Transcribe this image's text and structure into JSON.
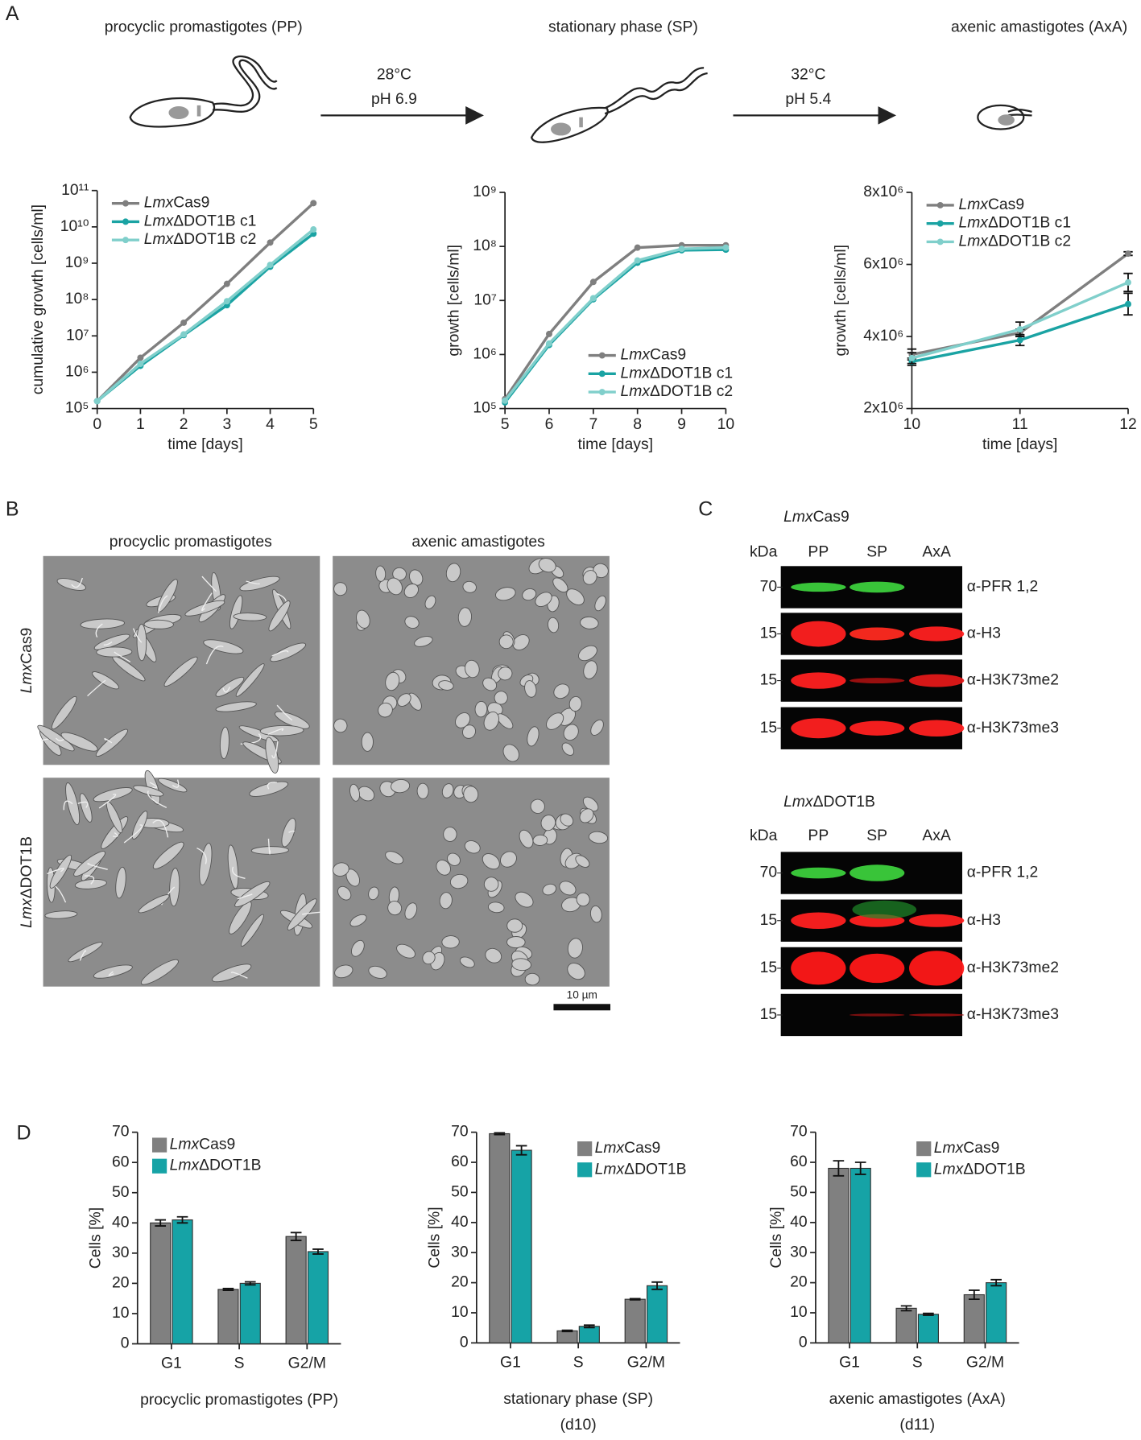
{
  "panel_labels": [
    "A",
    "B",
    "C",
    "D"
  ],
  "life_cycle": {
    "stages": [
      "procyclic promastigotes (PP)",
      "stationary phase (SP)",
      "axenic amastigotes (AxA)"
    ],
    "transitions": [
      [
        "28°C",
        "pH 6.9"
      ],
      [
        "32°C",
        "pH 5.4"
      ]
    ]
  },
  "microscopy": {
    "columns": [
      "procyclic promastigotes",
      "axenic amastigotes"
    ],
    "rows": [
      "LmxCas9",
      "LmxΔDOT1B"
    ],
    "scale_bar": "10 µm"
  },
  "western_blots": {
    "marker_header": "kDa",
    "lanes": [
      "PP",
      "SP",
      "AxA"
    ],
    "blots": [
      {
        "title": "LmxCas9",
        "markers": [
          "70",
          "15",
          "15",
          "15"
        ],
        "antibodies": [
          "α-PFR 1,2",
          "α-H3",
          "α-H3K73me2",
          "α-H3K73me3"
        ]
      },
      {
        "title": "LmxΔDOT1B",
        "markers": [
          "70",
          "15",
          "15",
          "15"
        ],
        "antibodies": [
          "α-PFR 1,2",
          "α-H3",
          "α-H3K73me2",
          "α-H3K73me3"
        ]
      }
    ]
  },
  "chart_data": [
    {
      "type": "line",
      "log_y": true,
      "xlabel": "time [days]",
      "ylabel": "cumulative growth [cells/ml]",
      "legend": "upper left",
      "x": [
        0,
        1,
        2,
        3,
        4,
        5
      ],
      "xlim": [
        0,
        5
      ],
      "xticks": [
        0,
        1,
        2,
        3,
        4,
        5
      ],
      "ylim": [
        100000.0,
        100000000000.0
      ],
      "yticks": [
        {
          "value": 100000.0,
          "label": "10⁵"
        },
        {
          "value": 1000000.0,
          "label": "10⁶"
        },
        {
          "value": 10000000.0,
          "label": "10⁷"
        },
        {
          "value": 100000000.0,
          "label": "10⁸"
        },
        {
          "value": 1000000000.0,
          "label": "10⁹"
        },
        {
          "value": 10000000000.0,
          "label": "10¹⁰"
        },
        {
          "value": 100000000000.0,
          "label": "10¹¹"
        }
      ],
      "series": [
        {
          "name": "LmxCas9",
          "color": "#7f7f7f",
          "values": [
            160000.0,
            2500000.0,
            23000000.0,
            270000000.0,
            3700000000.0,
            45000000000.0
          ]
        },
        {
          "name": "LmxΔDOT1B c1",
          "color": "#1aa3a3",
          "values": [
            160000.0,
            1500000.0,
            10500000.0,
            70000000.0,
            800000000.0,
            6500000000.0
          ]
        },
        {
          "name": "LmxΔDOT1B c2",
          "color": "#80cfcb",
          "values": [
            160000.0,
            1700000.0,
            11000000.0,
            90000000.0,
            900000000.0,
            8500000000.0
          ]
        }
      ]
    },
    {
      "type": "line",
      "log_y": true,
      "xlabel": "time [days]",
      "ylabel": "growth [cells/ml]",
      "legend": "lower right",
      "x": [
        5,
        6,
        7,
        8,
        9,
        10
      ],
      "xlim": [
        5,
        10
      ],
      "xticks": [
        5,
        6,
        7,
        8,
        9,
        10
      ],
      "ylim": [
        100000.0,
        1000000000.0
      ],
      "yticks": [
        {
          "value": 100000.0,
          "label": "10⁵"
        },
        {
          "value": 1000000.0,
          "label": "10⁶"
        },
        {
          "value": 10000000.0,
          "label": "10⁷"
        },
        {
          "value": 100000000.0,
          "label": "10⁸"
        },
        {
          "value": 1000000000.0,
          "label": "10⁹"
        }
      ],
      "series": [
        {
          "name": "LmxCas9",
          "color": "#7f7f7f",
          "values": [
            150000.0,
            2400000.0,
            22000000.0,
            95000000.0,
            105000000.0,
            105000000.0
          ]
        },
        {
          "name": "LmxΔDOT1B c1",
          "color": "#1aa3a3",
          "values": [
            130000.0,
            1500000.0,
            10500000.0,
            50000000.0,
            85000000.0,
            87000000.0
          ]
        },
        {
          "name": "LmxΔDOT1B c2",
          "color": "#80cfcb",
          "values": [
            140000.0,
            1600000.0,
            11000000.0,
            55000000.0,
            90000000.0,
            95000000.0
          ]
        }
      ]
    },
    {
      "type": "line",
      "log_y": false,
      "xlabel": "time [days]",
      "ylabel": "growth [cells/ml]",
      "legend": "upper left",
      "x": [
        10,
        11,
        12
      ],
      "xlim": [
        10,
        12
      ],
      "xticks": [
        10,
        11,
        12
      ],
      "ylim": [
        2000000.0,
        8000000.0
      ],
      "yticks": [
        {
          "value": 2000000.0,
          "label": "2x10⁶"
        },
        {
          "value": 4000000.0,
          "label": "4x10⁶"
        },
        {
          "value": 6000000.0,
          "label": "6x10⁶"
        },
        {
          "value": 8000000.0,
          "label": "8x10⁶"
        }
      ],
      "series": [
        {
          "name": "LmxCas9",
          "color": "#7f7f7f",
          "values": [
            3500000.0,
            4100000.0,
            6300000.0
          ],
          "errors": [
            150000.0,
            100000.0,
            50000.0
          ]
        },
        {
          "name": "LmxΔDOT1B c1",
          "color": "#1aa3a3",
          "values": [
            3300000.0,
            3900000.0,
            4900000.0
          ],
          "errors": [
            100000.0,
            150000.0,
            300000.0
          ]
        },
        {
          "name": "LmxΔDOT1B c2",
          "color": "#80cfcb",
          "values": [
            3400000.0,
            4200000.0,
            5500000.0
          ],
          "errors": [
            150000.0,
            200000.0,
            250000.0
          ]
        }
      ]
    },
    {
      "type": "bar",
      "title": "procyclic promastigotes (PP)",
      "ylabel": "Cells [%]",
      "legend": "upper left",
      "categories": [
        "G1",
        "S",
        "G2/M"
      ],
      "ylim": [
        0,
        70
      ],
      "yticks": [
        0,
        10,
        20,
        30,
        40,
        50,
        60,
        70
      ],
      "series": [
        {
          "name": "LmxCas9",
          "color": "#808080",
          "values": [
            40,
            18,
            35.5
          ],
          "errors": [
            1,
            0.3,
            1.3
          ]
        },
        {
          "name": "LmxΔDOT1B",
          "color": "#16a3a6",
          "values": [
            41,
            20,
            30.5
          ],
          "errors": [
            1,
            0.5,
            0.8
          ]
        }
      ]
    },
    {
      "type": "bar",
      "title": "stationary phase (SP)",
      "subtitle": "(d10)",
      "ylabel": "Cells [%]",
      "legend": "upper right",
      "categories": [
        "G1",
        "S",
        "G2/M"
      ],
      "ylim": [
        0,
        70
      ],
      "yticks": [
        0,
        10,
        20,
        30,
        40,
        50,
        60,
        70
      ],
      "series": [
        {
          "name": "LmxCas9",
          "color": "#808080",
          "values": [
            69.5,
            4,
            14.5
          ],
          "errors": [
            0.3,
            0.2,
            0.2
          ]
        },
        {
          "name": "LmxΔDOT1B",
          "color": "#16a3a6",
          "values": [
            64,
            5.5,
            19
          ],
          "errors": [
            1.5,
            0.4,
            1.2
          ]
        }
      ]
    },
    {
      "type": "bar",
      "title": "axenic amastigotes (AxA)",
      "subtitle": "(d11)",
      "ylabel": "Cells [%]",
      "legend": "upper right",
      "categories": [
        "G1",
        "S",
        "G2/M"
      ],
      "ylim": [
        0,
        70
      ],
      "yticks": [
        0,
        10,
        20,
        30,
        40,
        50,
        60,
        70
      ],
      "series": [
        {
          "name": "LmxCas9",
          "color": "#808080",
          "values": [
            58,
            11.5,
            16
          ],
          "errors": [
            2.5,
            0.8,
            1.5
          ]
        },
        {
          "name": "LmxΔDOT1B",
          "color": "#16a3a6",
          "values": [
            58,
            9.5,
            20
          ],
          "errors": [
            2,
            0.3,
            1
          ]
        }
      ]
    }
  ]
}
